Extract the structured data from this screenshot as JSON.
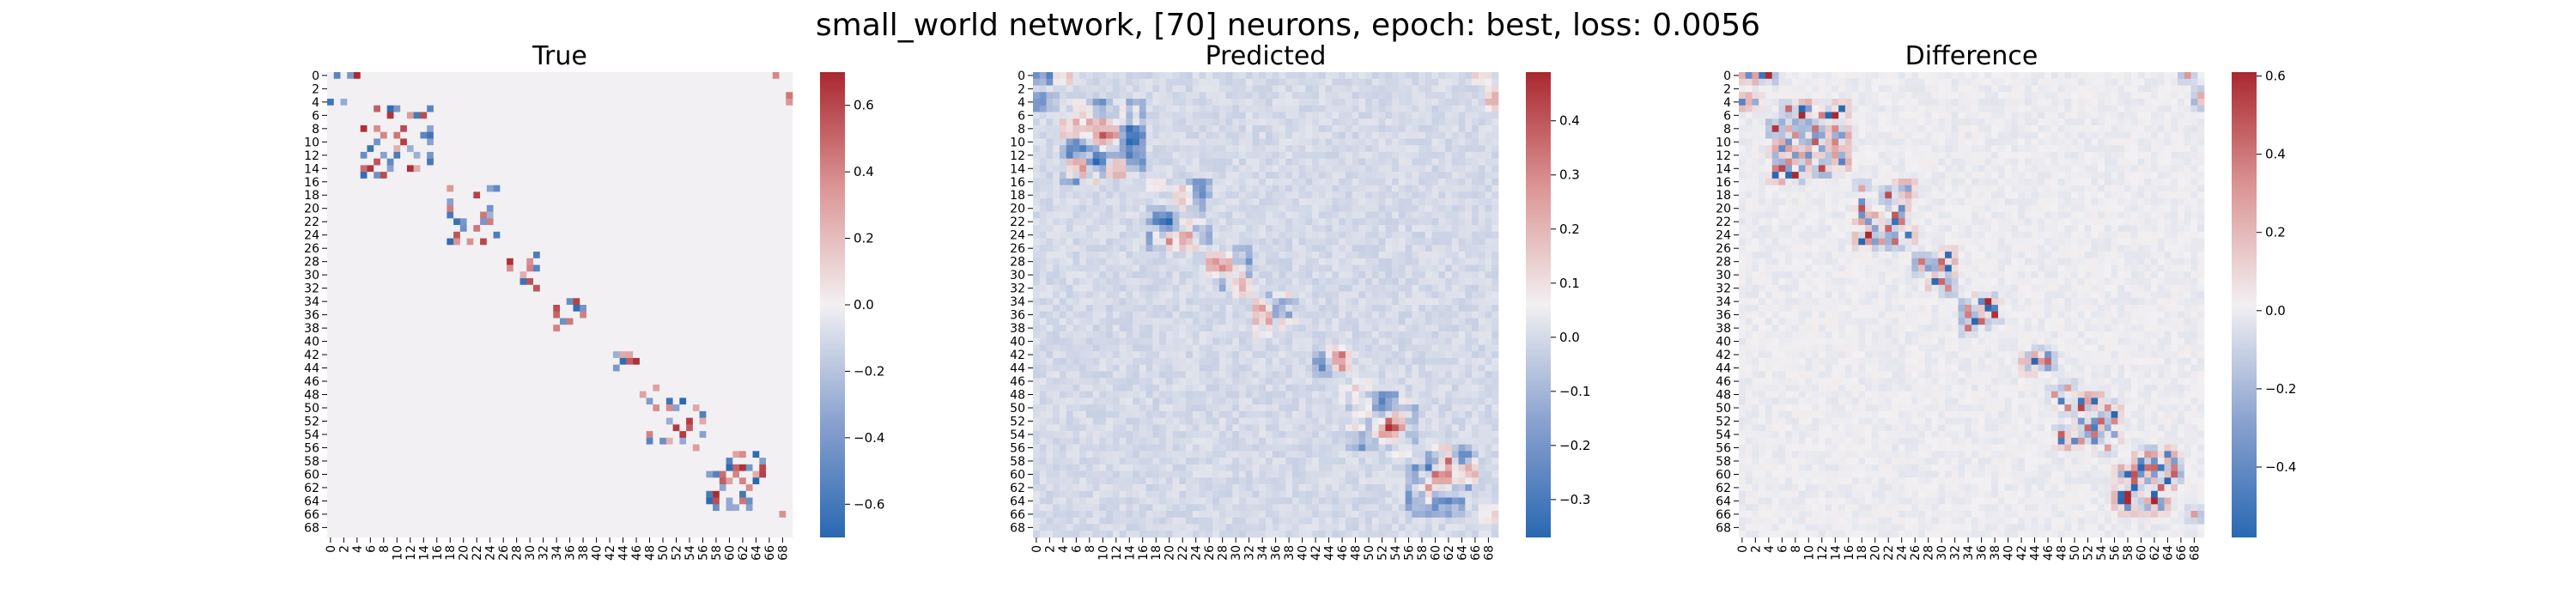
{
  "figure": {
    "suptitle": "small_world network, [70] neurons, epoch: best, loss: 0.0056"
  },
  "chart_data": [
    {
      "type": "heatmap",
      "title": "True",
      "n": 70,
      "tick_labels": [
        "0",
        "2",
        "4",
        "6",
        "8",
        "10",
        "12",
        "14",
        "16",
        "18",
        "20",
        "22",
        "24",
        "26",
        "28",
        "30",
        "32",
        "34",
        "36",
        "38",
        "40",
        "42",
        "44",
        "46",
        "48",
        "50",
        "52",
        "54",
        "56",
        "58",
        "60",
        "62",
        "64",
        "66",
        "68"
      ],
      "colormap": "vlag",
      "colorbar_range": [
        -0.7,
        0.7
      ],
      "colorbar_ticks": [
        -0.6,
        -0.4,
        -0.2,
        0.0,
        0.2,
        0.4,
        0.6
      ],
      "colorbar_tick_labels": [
        "−0.6",
        "−0.4",
        "−0.2",
        "0.0",
        "0.2",
        "0.4",
        "0.6"
      ],
      "pattern": "sparse block-diagonal connectivity (small-world), strong entries up to ±0.7 concentrated near the diagonal"
    },
    {
      "type": "heatmap",
      "title": "Predicted",
      "n": 70,
      "tick_labels": [
        "0",
        "2",
        "4",
        "6",
        "8",
        "10",
        "12",
        "14",
        "16",
        "18",
        "20",
        "22",
        "24",
        "26",
        "28",
        "30",
        "32",
        "34",
        "36",
        "38",
        "40",
        "42",
        "44",
        "46",
        "48",
        "50",
        "52",
        "54",
        "56",
        "58",
        "60",
        "62",
        "64",
        "66",
        "68"
      ],
      "colormap": "vlag",
      "colorbar_range": [
        -0.37,
        0.49
      ],
      "colorbar_ticks": [
        -0.3,
        -0.2,
        -0.1,
        0.0,
        0.1,
        0.2,
        0.3,
        0.4
      ],
      "colorbar_tick_labels": [
        "−0.3",
        "−0.2",
        "−0.1",
        "0.0",
        "0.1",
        "0.2",
        "0.3",
        "0.4"
      ],
      "pattern": "smoothed diagonal band with weak off-diagonal noise"
    },
    {
      "type": "heatmap",
      "title": "Difference",
      "n": 70,
      "tick_labels": [
        "0",
        "2",
        "4",
        "6",
        "8",
        "10",
        "12",
        "14",
        "16",
        "18",
        "20",
        "22",
        "24",
        "26",
        "28",
        "30",
        "32",
        "34",
        "36",
        "38",
        "40",
        "42",
        "44",
        "46",
        "48",
        "50",
        "52",
        "54",
        "56",
        "58",
        "60",
        "62",
        "64",
        "66",
        "68"
      ],
      "colormap": "vlag",
      "colorbar_range": [
        -0.58,
        0.61
      ],
      "colorbar_ticks": [
        -0.4,
        -0.2,
        0.0,
        0.2,
        0.4,
        0.6
      ],
      "colorbar_tick_labels": [
        "−0.4",
        "−0.2",
        "0.0",
        "0.2",
        "0.4",
        "0.6"
      ],
      "pattern": "residual diagonal band with scattered small off-diagonal errors"
    }
  ]
}
